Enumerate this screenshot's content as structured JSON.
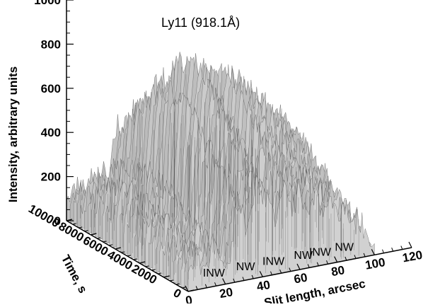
{
  "chart_data": {
    "type": "surface",
    "title": "Ly11 (918.1Å)",
    "zlabel": "Intensity, arbitrary units",
    "zlim": [
      0,
      1000
    ],
    "z_ticks": [
      "0",
      "200",
      "400",
      "600",
      "800",
      "1000"
    ],
    "xlabel": "Slit length, arcsec",
    "xlim": [
      0,
      120
    ],
    "x_ticks": [
      "0",
      "20",
      "40",
      "60",
      "80",
      "100",
      "120"
    ],
    "ylabel": "Time, s",
    "ylim": [
      0,
      10000
    ],
    "y_ticks": [
      "0",
      "2000",
      "4000",
      "6000",
      "8000",
      "10000"
    ],
    "region_labels": [
      {
        "text": "INW",
        "x": 10
      },
      {
        "text": "NW",
        "x": 27
      },
      {
        "text": "INW",
        "x": 42
      },
      {
        "text": "NW",
        "x": 58
      },
      {
        "text": "INW",
        "x": 67
      },
      {
        "text": "NW",
        "x": 80
      }
    ],
    "ridges": [
      {
        "x": 4,
        "peak": 230
      },
      {
        "x": 14,
        "peak": 300
      },
      {
        "x": 27,
        "peak": 640
      },
      {
        "x": 36,
        "peak": 720
      },
      {
        "x": 43,
        "peak": 600
      },
      {
        "x": 52,
        "peak": 700
      },
      {
        "x": 60,
        "peak": 620
      },
      {
        "x": 68,
        "peak": 560
      },
      {
        "x": 76,
        "peak": 480
      },
      {
        "x": 84,
        "peak": 420
      },
      {
        "x": 92,
        "peak": 240
      }
    ],
    "colors": {
      "surface": "#a8a8a8",
      "surface_light": "#d8d8d8",
      "surface_dark": "#6e6e6e",
      "axis": "#000000"
    }
  }
}
